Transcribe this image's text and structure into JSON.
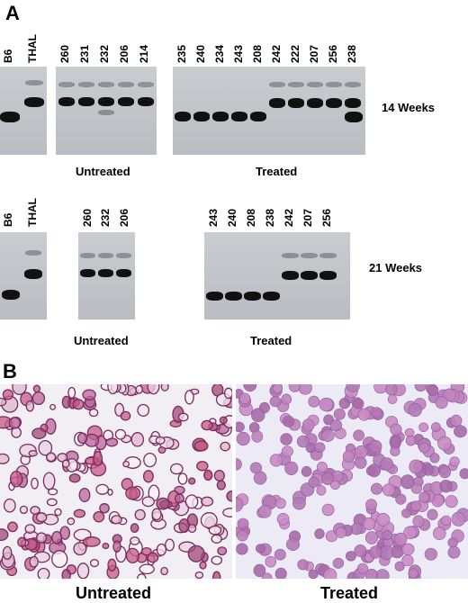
{
  "panel_a": {
    "letter": "A",
    "row14": {
      "reference_lanes": [
        "B6",
        "THAL"
      ],
      "untreated_lanes": [
        "260",
        "231",
        "232",
        "206",
        "214"
      ],
      "treated_lanes": [
        "235",
        "240",
        "234",
        "243",
        "208",
        "242",
        "222",
        "207",
        "256",
        "238"
      ],
      "weeks_label": "14 Weeks",
      "untreated_caption": "Untreated",
      "treated_caption": "Treated"
    },
    "row21": {
      "reference_lanes": [
        "B6",
        "THAL"
      ],
      "untreated_lanes": [
        "260",
        "232",
        "206"
      ],
      "treated_lanes": [
        "243",
        "240",
        "208",
        "238",
        "242",
        "207",
        "256"
      ],
      "weeks_label": "21 Weeks",
      "untreated_caption": "Untreated",
      "treated_caption": "Treated"
    }
  },
  "panel_b": {
    "letter": "B",
    "left_caption": "Untreated",
    "right_caption": "Treated"
  }
}
